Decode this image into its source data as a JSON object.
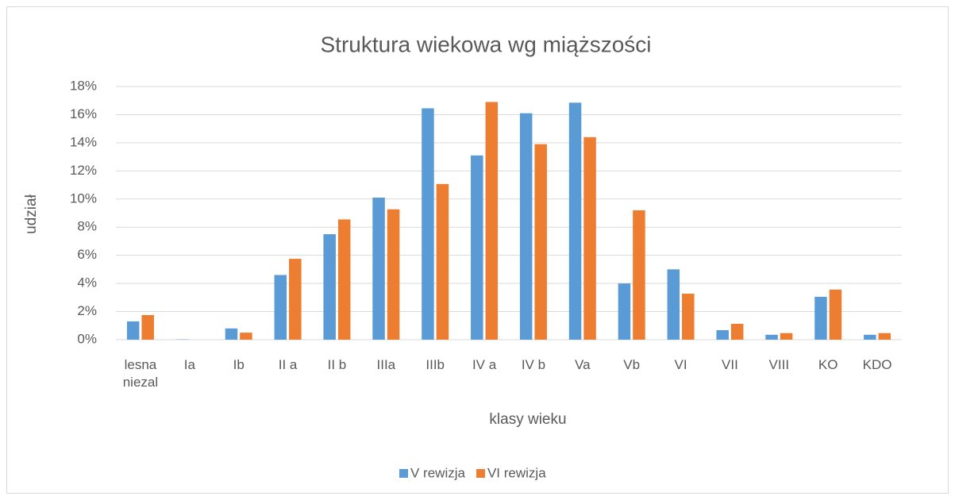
{
  "chart_data": {
    "type": "bar",
    "title": "Struktura wiekowa wg miąższości",
    "x_label": "klasy wieku",
    "y_label": "udział",
    "categories": [
      "lesna niezal",
      "Ia",
      "Ib",
      "II a",
      "II b",
      "IIIa",
      "IIIb",
      "IV a",
      "IV b",
      "Va",
      "Vb",
      "VI",
      "VII",
      "VIII",
      "KO",
      "KDO"
    ],
    "series": [
      {
        "name": "V rewizja",
        "color": "#5b9bd5",
        "values": [
          1.3,
          0.02,
          0.8,
          4.6,
          7.5,
          10.1,
          16.45,
          13.1,
          16.1,
          16.85,
          4.0,
          5.0,
          0.68,
          0.35,
          3.05,
          0.35
        ]
      },
      {
        "name": "VI rewizja",
        "color": "#ed7d31",
        "values": [
          1.75,
          0,
          0.5,
          5.75,
          8.55,
          9.27,
          11.07,
          16.9,
          13.9,
          14.4,
          9.2,
          3.27,
          1.13,
          0.47,
          3.56,
          0.47
        ]
      }
    ],
    "ylim": [
      0,
      18
    ],
    "yticks": [
      {
        "value": 0,
        "label": "0%"
      },
      {
        "value": 2,
        "label": "2%"
      },
      {
        "value": 4,
        "label": "4%"
      },
      {
        "value": 6,
        "label": "6%"
      },
      {
        "value": 8,
        "label": "8%"
      },
      {
        "value": 10,
        "label": "10%"
      },
      {
        "value": 12,
        "label": "12%"
      },
      {
        "value": 14,
        "label": "14%"
      },
      {
        "value": 16,
        "label": "16%"
      },
      {
        "value": 18,
        "label": "18%"
      }
    ],
    "grid": true,
    "legend": "bottom"
  }
}
